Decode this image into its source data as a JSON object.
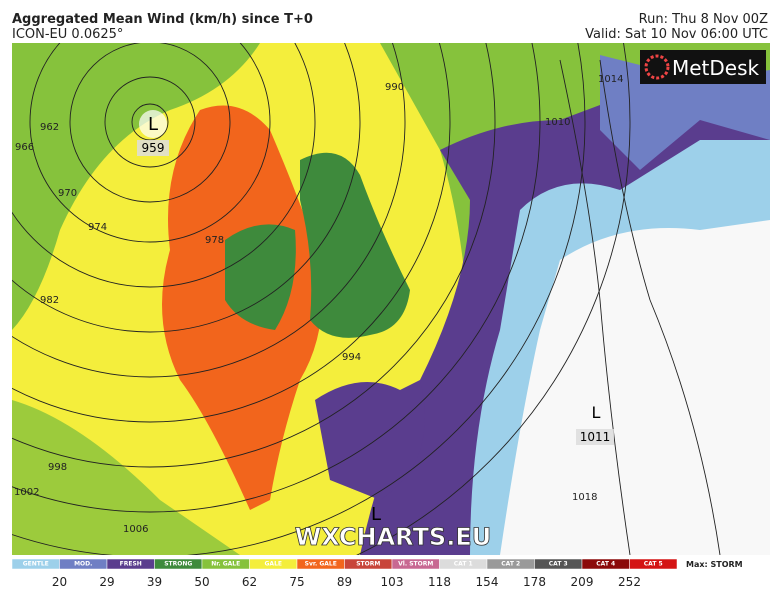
{
  "header": {
    "title": "Aggregated Mean Wind (km/h) since T+0",
    "model": "ICON-EU 0.0625°",
    "run": "Run: Thu 8 Nov 00Z",
    "valid": "Valid: Sat 10 Nov 06:00 UTC"
  },
  "logo": "MetDesk",
  "watermark": "WXCHARTS.EU",
  "map": {
    "lows": [
      {
        "symbol": "L",
        "pressure": "959"
      },
      {
        "symbol": "L",
        "pressure": "1011"
      },
      {
        "symbol": "L"
      }
    ],
    "isobar_labels": [
      "962",
      "966",
      "970",
      "974",
      "978",
      "982",
      "990",
      "994",
      "998",
      "1002",
      "1006",
      "1010",
      "1014",
      "1018"
    ]
  },
  "legend": {
    "categories": [
      "GENTLE",
      "MOD.",
      "FRESH",
      "STRONG",
      "Nr. GALE",
      "GALE",
      "Svr. GALE",
      "STORM",
      "Vl. STORM",
      "CAT 1",
      "CAT 2",
      "CAT 3",
      "CAT 4",
      "CAT 5"
    ],
    "colors": [
      "#9dd0ea",
      "#6f7fc4",
      "#5a3d8e",
      "#3e8a3c",
      "#86c23c",
      "#f4ee3c",
      "#f2651c",
      "#c8453a",
      "#c86892",
      "#dcdcdc",
      "#9a9a9a",
      "#555555",
      "#8b0a0a",
      "#d41414"
    ],
    "thresholds": [
      20,
      29,
      39,
      50,
      62,
      75,
      89,
      103,
      118,
      154,
      178,
      209,
      252
    ],
    "max": "Max: STORM"
  }
}
